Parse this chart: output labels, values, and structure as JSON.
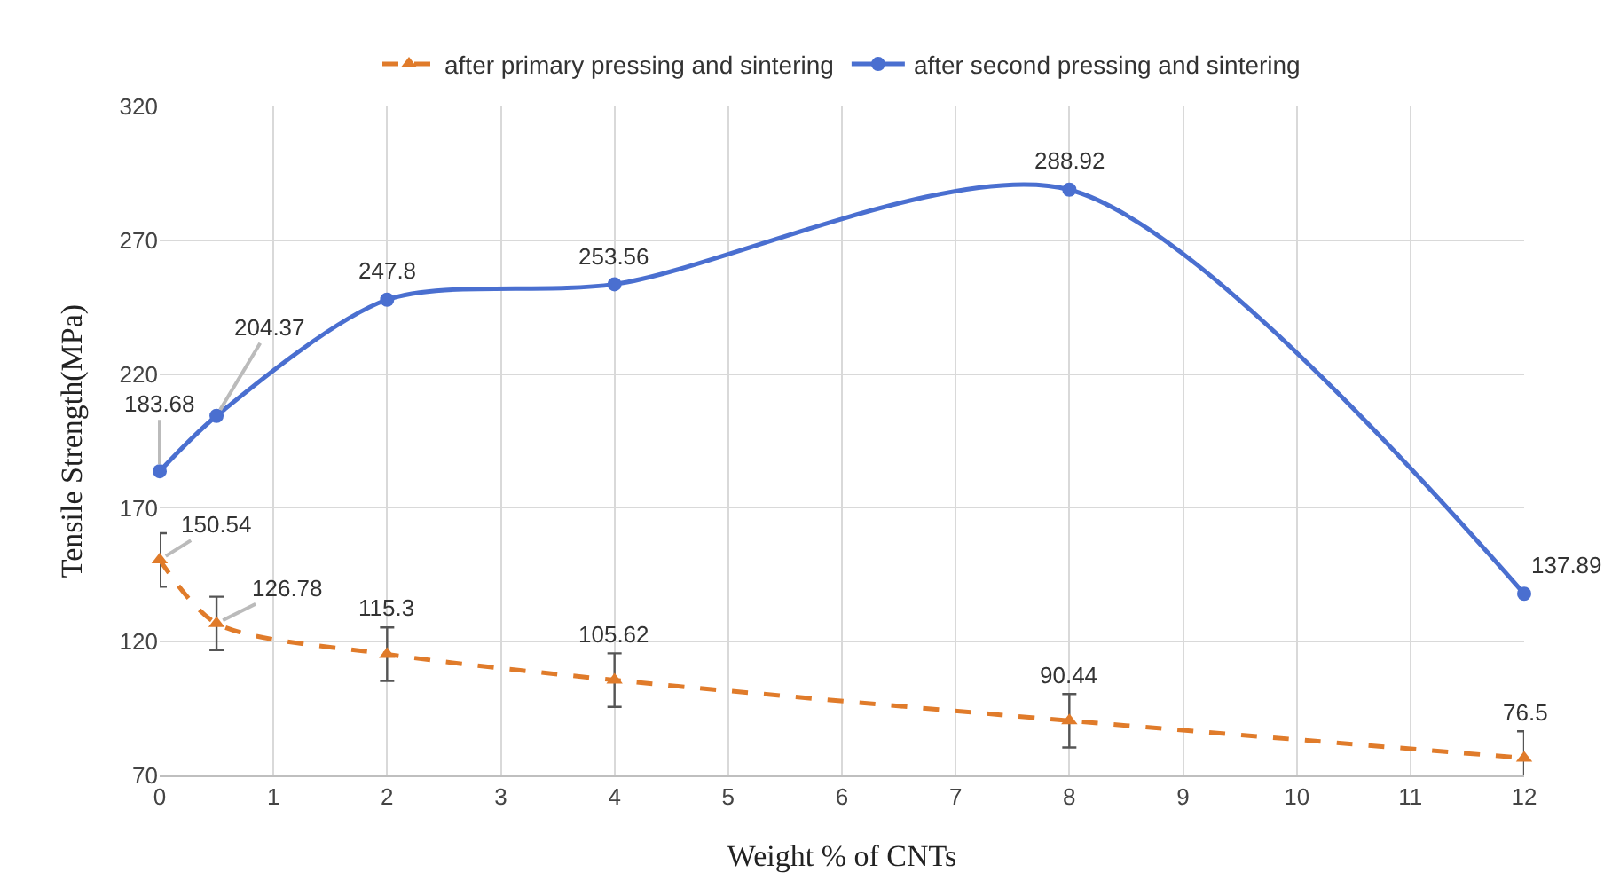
{
  "chart_data": {
    "type": "line",
    "xlabel": "Weight % of CNTs",
    "ylabel": "Tensile Strength(MPa)",
    "x": [
      0,
      0.5,
      2,
      4,
      8,
      12
    ],
    "series": [
      {
        "name": "after primary pressing and sintering",
        "color": "#e07b2a",
        "values": [
          150.54,
          126.78,
          115.3,
          105.62,
          90.44,
          76.5
        ],
        "errors": [
          10,
          10,
          10,
          10,
          10,
          10
        ],
        "marker": "triangle",
        "line_style": "dashed"
      },
      {
        "name": "after second pressing and sintering",
        "color": "#4a6fd0",
        "values": [
          183.68,
          204.37,
          247.8,
          253.56,
          288.92,
          137.89
        ],
        "marker": "circle",
        "line_style": "solid"
      }
    ],
    "xlim": [
      0,
      12
    ],
    "xticks": [
      0,
      1,
      2,
      3,
      4,
      5,
      6,
      7,
      8,
      9,
      10,
      11,
      12
    ],
    "ylim": [
      70,
      320
    ],
    "yticks": [
      70,
      120,
      170,
      220,
      270,
      320
    ],
    "grid": true,
    "legend": "top",
    "data_labels": true
  }
}
